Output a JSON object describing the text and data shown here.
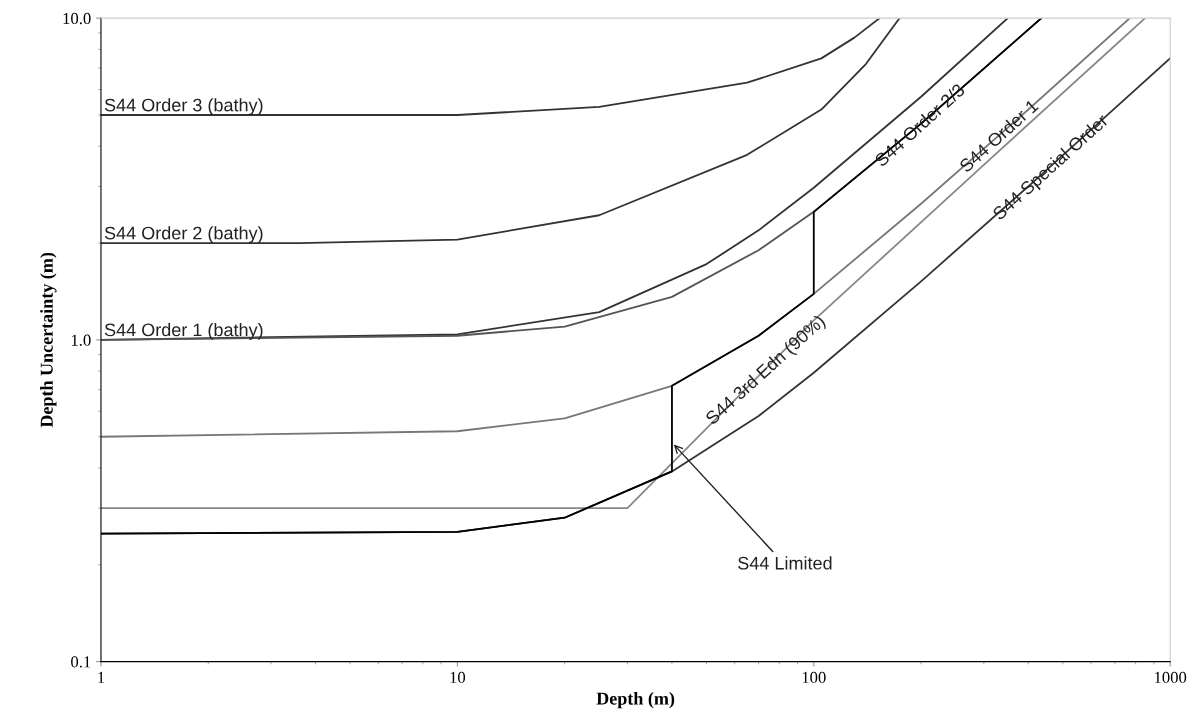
{
  "chart_data": {
    "type": "line",
    "xlabel": "Depth (m)",
    "ylabel": "Depth Uncertainty (m)",
    "log": "xy",
    "xlim": [
      1,
      1000
    ],
    "ylim": [
      0.1,
      10
    ],
    "xticks": [
      1,
      10,
      100,
      1000
    ],
    "yticks": [
      {
        "value": 0.1,
        "label": "0.1"
      },
      {
        "value": 1,
        "label": "1.0"
      },
      {
        "value": 10,
        "label": "10.0"
      }
    ],
    "grid": false,
    "legend": false,
    "marker": "none",
    "line_style": "solid",
    "series": [
      {
        "name": "S44 Order 3 (bathy)",
        "color": "#333333",
        "x": [
          1,
          10,
          25,
          65,
          105,
          130,
          153
        ],
        "values": [
          5,
          5.0,
          5.3,
          6.3,
          7.5,
          8.7,
          10
        ]
      },
      {
        "name": "S44 Order 2 (bathy)",
        "color": "#333333",
        "x": [
          1,
          3.6,
          10,
          25,
          65,
          105,
          140,
          174
        ],
        "values": [
          2,
          2.0,
          2.05,
          2.44,
          3.76,
          5.2,
          7.2,
          10
        ]
      },
      {
        "name": "S44 Order 1 (bathy)",
        "color": "#333333",
        "x": [
          1,
          10,
          25,
          50,
          70,
          100,
          200,
          350
        ],
        "values": [
          1,
          1.04,
          1.22,
          1.72,
          2.19,
          2.97,
          5.7,
          10
        ]
      },
      {
        "color": "#555555",
        "x": [
          1,
          10,
          20,
          40,
          70,
          100,
          200,
          300,
          435
        ],
        "values": [
          1,
          1.03,
          1.1,
          1.36,
          1.9,
          2.5,
          4.7,
          6.97,
          10
        ]
      },
      {
        "name": "S44 Order 1",
        "color": "#777777",
        "x": [
          1,
          10,
          20,
          40,
          70,
          100,
          200,
          400,
          770
        ],
        "values": [
          0.5,
          0.52,
          0.57,
          0.72,
          1.03,
          1.39,
          2.65,
          5.2,
          10
        ]
      },
      {
        "name": "S44 3rd Edn (90%)",
        "color": "#888888",
        "x": [
          1,
          30,
          100,
          300,
          850
        ],
        "values": [
          0.3,
          0.3,
          1.15,
          3.5,
          10
        ]
      },
      {
        "name": "S44 Special Order",
        "color": "#333333",
        "x": [
          1,
          10,
          20,
          40,
          70,
          100,
          200,
          400,
          700,
          1000
        ],
        "values": [
          0.25,
          0.253,
          0.28,
          0.39,
          0.58,
          0.79,
          1.52,
          3.0,
          5.25,
          7.5
        ]
      },
      {
        "name": "S44 Order 2/3",
        "color": "#000000",
        "x": [
          1,
          10,
          20,
          40,
          40,
          70,
          100,
          100,
          200,
          300,
          435
        ],
        "values": [
          0.25,
          0.253,
          0.28,
          0.39,
          0.72,
          1.03,
          1.39,
          2.5,
          4.7,
          6.97,
          10
        ]
      }
    ],
    "annotations": [
      {
        "text": "S44 Limited",
        "x": 40,
        "y": 0.48
      }
    ]
  }
}
